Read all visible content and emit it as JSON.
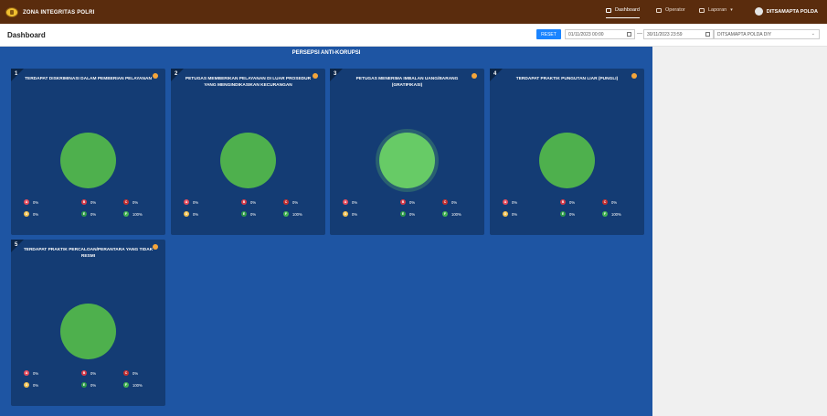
{
  "header": {
    "brand": "ZONA INTEGRITAS POLRI",
    "nav": [
      {
        "label": "Dashboard",
        "icon": "dashboard-icon"
      },
      {
        "label": "Operator",
        "icon": "operator-icon"
      },
      {
        "label": "Laporan",
        "icon": "report-icon"
      }
    ],
    "user": "DITSAMAPTA POLDA"
  },
  "toolbar": {
    "title": "Dashboard",
    "reset_label": "RESET",
    "date_from": "01/11/2023 00:00",
    "date_sep": "—",
    "date_to": "30/11/2023 23:59",
    "unit": "DITSAMAPTA POLDA DIY"
  },
  "section_title": "PERSEPSI ANTI-KORUPSI",
  "colors": {
    "A": "#e74c5b",
    "B": "#d63a48",
    "C": "#c62f2f",
    "D": "#f2c14e",
    "E": "#2e9c47",
    "F": "#45b552",
    "pie": "#4eb04d",
    "pie_highlight": "#67cb66"
  },
  "cards": [
    {
      "num": "1",
      "title": "TERDAPAT DISKRIMINASI DALAM PEMBERIAN PELAYANAN",
      "legend": [
        {
          "k": "A",
          "v": "0%"
        },
        {
          "k": "B",
          "v": "0%"
        },
        {
          "k": "C",
          "v": "0%"
        },
        {
          "k": "D",
          "v": "0%"
        },
        {
          "k": "E",
          "v": "0%"
        },
        {
          "k": "F",
          "v": "100%"
        }
      ]
    },
    {
      "num": "2",
      "title": "PETUGAS MEMBERIKAN PELAYANAN DI LUAR PROSEDUR YANG MENGINDIKASIKAN KECURANGAN",
      "legend": [
        {
          "k": "A",
          "v": "0%"
        },
        {
          "k": "B",
          "v": "0%"
        },
        {
          "k": "C",
          "v": "0%"
        },
        {
          "k": "D",
          "v": "0%"
        },
        {
          "k": "E",
          "v": "0%"
        },
        {
          "k": "F",
          "v": "100%"
        }
      ]
    },
    {
      "num": "3",
      "title": "PETUGAS MENERIMA IMBALAN UANG/BARANG (GRATIFIKASI)",
      "legend": [
        {
          "k": "A",
          "v": "0%"
        },
        {
          "k": "B",
          "v": "0%"
        },
        {
          "k": "C",
          "v": "0%"
        },
        {
          "k": "D",
          "v": "0%"
        },
        {
          "k": "E",
          "v": "0%"
        },
        {
          "k": "F",
          "v": "100%"
        }
      ]
    },
    {
      "num": "4",
      "title": "TERDAPAT PRAKTIK PUNGUTAN LIAR (PUNGLI)",
      "legend": [
        {
          "k": "A",
          "v": "0%"
        },
        {
          "k": "B",
          "v": "0%"
        },
        {
          "k": "C",
          "v": "0%"
        },
        {
          "k": "D",
          "v": "0%"
        },
        {
          "k": "E",
          "v": "0%"
        },
        {
          "k": "F",
          "v": "100%"
        }
      ]
    },
    {
      "num": "5",
      "title": "TERDAPAT PRAKTIK PERCALOAN/PERANTARA YANG TIDAK RESMI",
      "legend": [
        {
          "k": "A",
          "v": "0%"
        },
        {
          "k": "B",
          "v": "0%"
        },
        {
          "k": "C",
          "v": "0%"
        },
        {
          "k": "D",
          "v": "0%"
        },
        {
          "k": "E",
          "v": "0%"
        },
        {
          "k": "F",
          "v": "100%"
        }
      ]
    }
  ]
}
